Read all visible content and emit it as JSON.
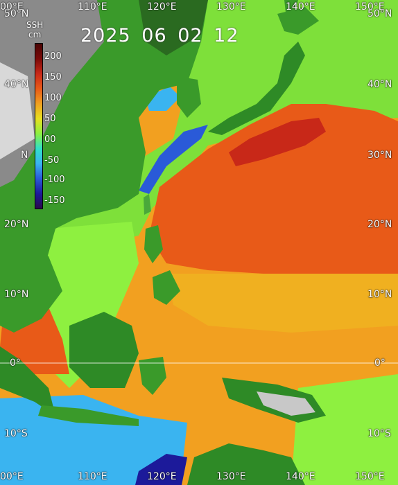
{
  "date_label": "2025 06 02 12",
  "colorbar": {
    "title": "SSH",
    "unit": "cm",
    "ticks": [
      "200",
      "150",
      "100",
      "50",
      "00",
      "-50",
      "-100",
      "-150"
    ],
    "colors": [
      "#2a0a4a",
      "#1c1a9a",
      "#2a5ad8",
      "#3ab4f0",
      "#30e0c8",
      "#8ef040",
      "#e8e020",
      "#f0a020",
      "#e85a18",
      "#c82818",
      "#7a0a08",
      "#4a0505"
    ]
  },
  "lon_labels_top": [
    "00°E",
    "110°E",
    "120°E",
    "130°E",
    "140°E",
    "150°E"
  ],
  "lon_labels_bottom": [
    "00°E",
    "110°E",
    "120°E",
    "130°E",
    "140°E",
    "150°E"
  ],
  "lat_labels_left": [
    "50°N",
    "40°N",
    "N",
    "20°N",
    "10°N",
    "0°",
    "10°S"
  ],
  "lat_labels_right": [
    "50°N",
    "40°N",
    "30°N",
    "20°N",
    "10°N",
    "0°",
    "10°S"
  ]
}
